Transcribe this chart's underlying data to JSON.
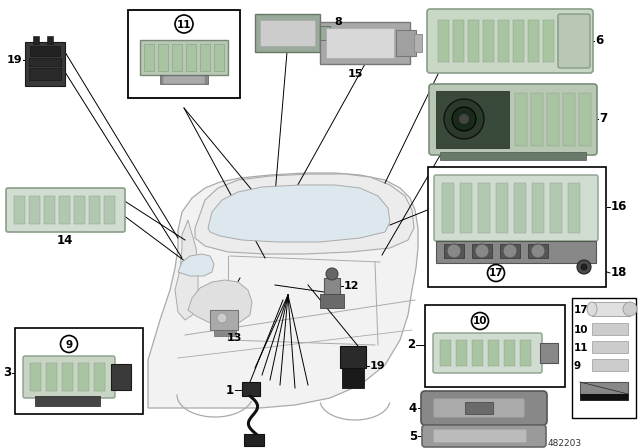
{
  "bg_color": "#ffffff",
  "part_number": "482203",
  "fig_width": 6.4,
  "fig_height": 4.48,
  "dpi": 100,
  "car_color": "#e8e8e8",
  "car_edge": "#aaaaaa",
  "lamp_green": "#c8d8c4",
  "lamp_green_dark": "#a8c4a0",
  "lamp_rim": "#8a9e8a",
  "gray_dark": "#555555",
  "gray_mid": "#888888",
  "gray_light": "#bbbbbb",
  "black": "#111111",
  "white": "#ffffff"
}
